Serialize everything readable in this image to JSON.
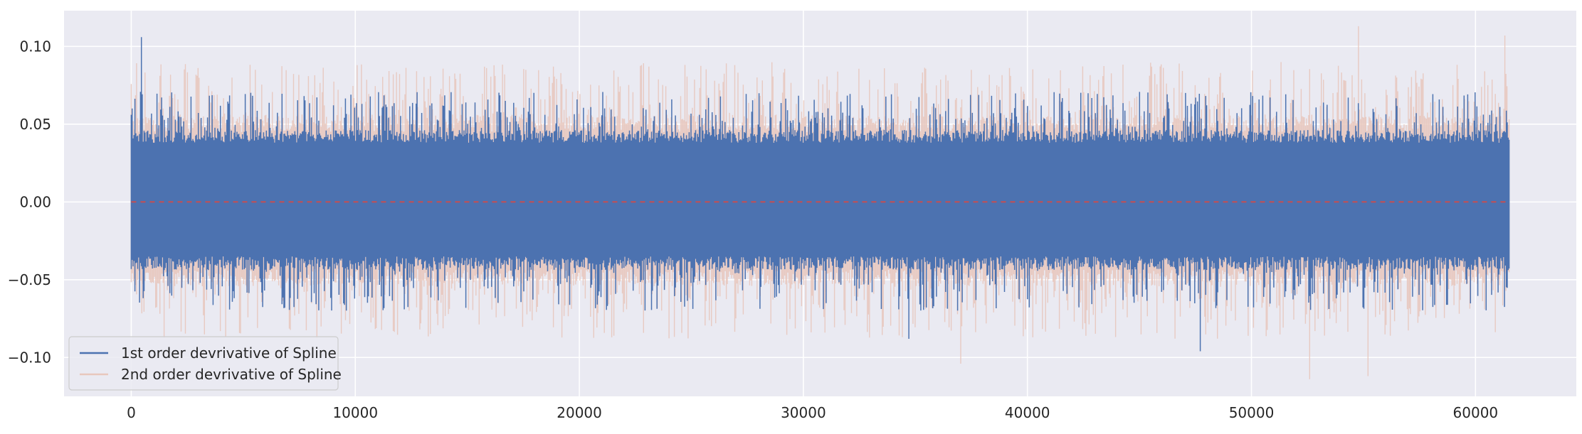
{
  "chart_data": {
    "type": "line",
    "title": "",
    "xlabel": "",
    "ylabel": "",
    "xlim": [
      -3000,
      64500
    ],
    "ylim": [
      -0.125,
      0.123
    ],
    "x_ticks": [
      0,
      10000,
      20000,
      30000,
      40000,
      50000,
      60000
    ],
    "x_tick_labels": [
      "0",
      "10000",
      "20000",
      "30000",
      "40000",
      "50000",
      "60000"
    ],
    "y_ticks": [
      -0.1,
      -0.05,
      0.0,
      0.05,
      0.1
    ],
    "y_tick_labels": [
      "−0.10",
      "−0.05",
      "0.00",
      "0.05",
      "0.10"
    ],
    "grid": true,
    "legend_position": "lower-left",
    "n_points": 61500,
    "series": [
      {
        "name": "1st order devrivative of Spline",
        "color": "#4c72b0",
        "x_range": [
          0,
          61500
        ],
        "core_range": [
          -0.035,
          0.038
        ],
        "extremes": [
          {
            "x": 450,
            "y": 0.106
          },
          {
            "x": 47700,
            "y": -0.096
          },
          {
            "x": 34700,
            "y": -0.088
          }
        ]
      },
      {
        "name": "2nd order devrivative of Spline",
        "color": "#e8c7bd",
        "x_range": [
          0,
          61500
        ],
        "core_range": [
          -0.043,
          0.045
        ],
        "extremes": [
          {
            "x": 52600,
            "y": -0.114
          },
          {
            "x": 54800,
            "y": 0.113
          },
          {
            "x": 55200,
            "y": -0.112
          },
          {
            "x": 61300,
            "y": 0.107
          },
          {
            "x": 37000,
            "y": -0.104
          }
        ]
      },
      {
        "name": "",
        "color": "#c44e52",
        "style": "dashed",
        "x": [
          0,
          61500
        ],
        "y": [
          0,
          0
        ]
      }
    ]
  },
  "colors": {
    "plot_background": "#eaeaf2",
    "grid": "#ffffff",
    "legend_background": "#eaeaf2",
    "legend_border": "#cccccc"
  }
}
